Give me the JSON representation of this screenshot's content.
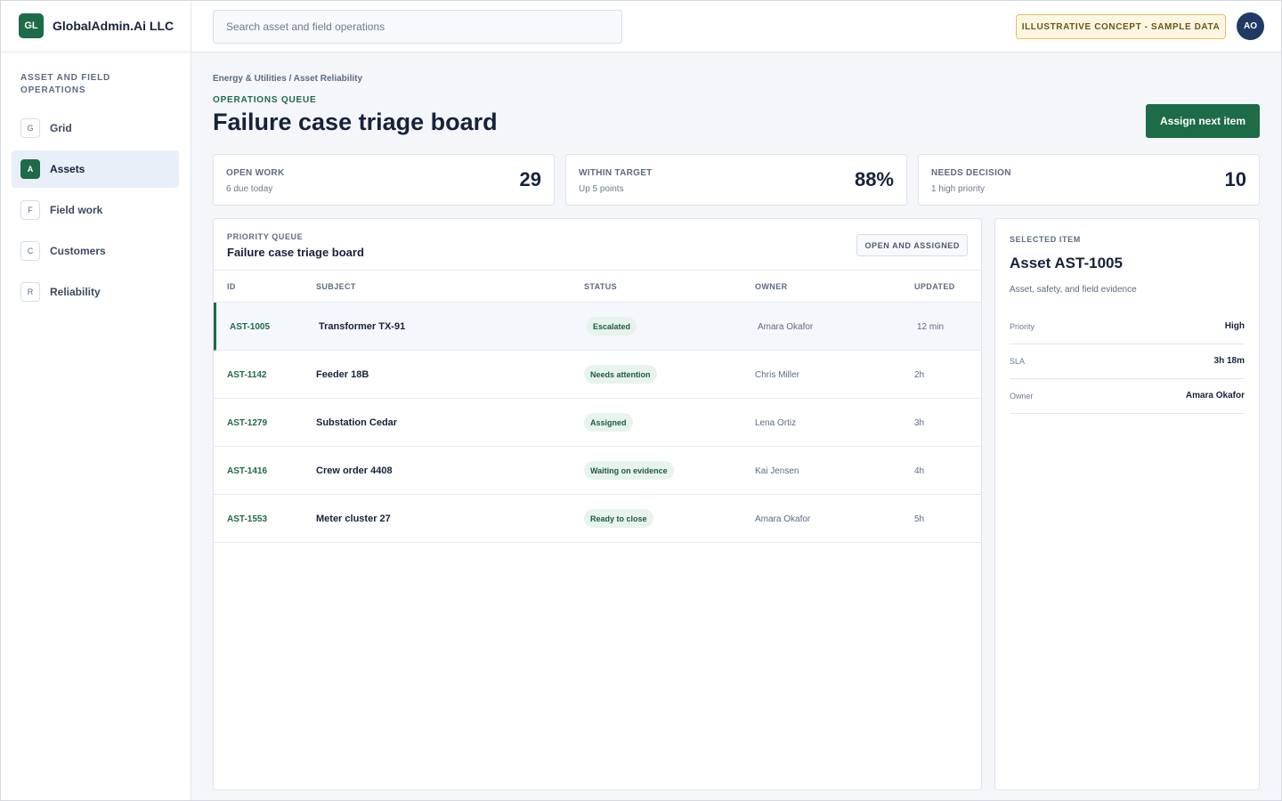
{
  "brand": {
    "logo": "GL",
    "name": "GlobalAdmin.Ai LLC"
  },
  "sidebar": {
    "section": "ASSET AND FIELD OPERATIONS",
    "items": [
      {
        "badge": "G",
        "label": "Grid"
      },
      {
        "badge": "A",
        "label": "Assets"
      },
      {
        "badge": "F",
        "label": "Field work"
      },
      {
        "badge": "C",
        "label": "Customers"
      },
      {
        "badge": "R",
        "label": "Reliability"
      }
    ]
  },
  "topbar": {
    "search_placeholder": "Search asset and field operations",
    "concept_badge": "ILLUSTRATIVE CONCEPT - SAMPLE DATA",
    "avatar": "AO"
  },
  "header": {
    "breadcrumb": "Energy & Utilities / Asset Reliability",
    "eyebrow": "OPERATIONS QUEUE",
    "title": "Failure case triage board",
    "primary_action": "Assign next item"
  },
  "kpis": [
    {
      "label": "OPEN WORK",
      "sub": "6 due today",
      "value": "29"
    },
    {
      "label": "WITHIN TARGET",
      "sub": "Up 5 points",
      "value": "88%"
    },
    {
      "label": "NEEDS DECISION",
      "sub": "1 high priority",
      "value": "10"
    }
  ],
  "queue": {
    "eyebrow": "PRIORITY QUEUE",
    "title": "Failure case triage board",
    "filter": "OPEN AND ASSIGNED",
    "columns": [
      "ID",
      "SUBJECT",
      "STATUS",
      "OWNER",
      "UPDATED"
    ],
    "rows": [
      {
        "id": "AST-1005",
        "subject": "Transformer TX-91",
        "status": "Escalated",
        "owner": "Amara Okafor",
        "updated": "12 min"
      },
      {
        "id": "AST-1142",
        "subject": "Feeder 18B",
        "status": "Needs attention",
        "owner": "Chris Miller",
        "updated": "2h"
      },
      {
        "id": "AST-1279",
        "subject": "Substation Cedar",
        "status": "Assigned",
        "owner": "Lena Ortiz",
        "updated": "3h"
      },
      {
        "id": "AST-1416",
        "subject": "Crew order 4408",
        "status": "Waiting on evidence",
        "owner": "Kai Jensen",
        "updated": "4h"
      },
      {
        "id": "AST-1553",
        "subject": "Meter cluster 27",
        "status": "Ready to close",
        "owner": "Amara Okafor",
        "updated": "5h"
      }
    ]
  },
  "detail": {
    "eyebrow": "SELECTED ITEM",
    "title": "Asset AST-1005",
    "description": "Asset, safety, and field evidence",
    "props": [
      {
        "key": "Priority",
        "value": "High"
      },
      {
        "key": "SLA",
        "value": "3h 18m"
      },
      {
        "key": "Owner",
        "value": "Amara Okafor"
      }
    ]
  },
  "colors": {
    "accent": "#1d6b47",
    "avatar": "#1f3a64",
    "badge_border": "#e2bf59"
  }
}
